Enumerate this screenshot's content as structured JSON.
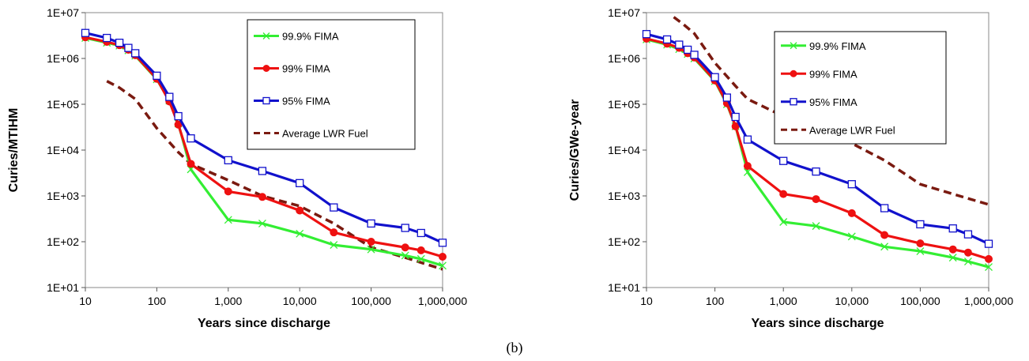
{
  "caption": "(b)",
  "chart_data": [
    {
      "type": "line",
      "xscale": "log",
      "yscale": "log",
      "xlabel": "Years since discharge",
      "ylabel": "Curies/MTIHM",
      "xlim": [
        10,
        1000000
      ],
      "ylim": [
        10,
        10000000
      ],
      "x_tick_labels": [
        "10",
        "100",
        "1,000",
        "10,000",
        "100,000",
        "1,000,000"
      ],
      "y_tick_labels": [
        "1E+01",
        "1E+02",
        "1E+03",
        "1E+04",
        "1E+05",
        "1E+06",
        "1E+07"
      ],
      "legend_position": "top-right",
      "series": [
        {
          "name": "99.9% FIMA",
          "color": "#33ee33",
          "marker": "x",
          "dash": "",
          "x": [
            10,
            20,
            30,
            40,
            50,
            100,
            150,
            200,
            300,
            1000,
            3000,
            10000,
            30000,
            100000,
            300000,
            500000,
            1000000
          ],
          "y": [
            2800000,
            2200000,
            1900000,
            1500000,
            1150000,
            350000,
            120000,
            38000,
            3800,
            300,
            250,
            150,
            85,
            68,
            50,
            42,
            30
          ]
        },
        {
          "name": "99% FIMA",
          "color": "#ee1111",
          "marker": "circle",
          "dash": "",
          "x": [
            10,
            20,
            30,
            40,
            50,
            100,
            150,
            200,
            300,
            1000,
            3000,
            10000,
            30000,
            100000,
            300000,
            500000,
            1000000
          ],
          "y": [
            2900000,
            2300000,
            1950000,
            1550000,
            1180000,
            360000,
            115000,
            36000,
            5000,
            1250,
            950,
            480,
            160,
            100,
            75,
            65,
            47
          ]
        },
        {
          "name": "95% FIMA",
          "color": "#1111cc",
          "marker": "square",
          "dash": "",
          "x": [
            10,
            20,
            30,
            40,
            50,
            100,
            150,
            200,
            300,
            1000,
            3000,
            10000,
            30000,
            100000,
            300000,
            500000,
            1000000
          ],
          "y": [
            3600000,
            2800000,
            2200000,
            1700000,
            1300000,
            420000,
            145000,
            55000,
            18000,
            6000,
            3500,
            1900,
            560,
            250,
            200,
            155,
            95
          ]
        },
        {
          "name": "Average LWR Fuel",
          "color": "#7a1a10",
          "marker": "none",
          "dash": "10,6",
          "x": [
            20,
            30,
            50,
            100,
            200,
            300,
            1000,
            3000,
            10000,
            30000,
            100000,
            300000,
            1000000
          ],
          "y": [
            320000,
            230000,
            130000,
            30000,
            9000,
            5000,
            2200,
            1000,
            600,
            250,
            75,
            45,
            25
          ]
        }
      ]
    },
    {
      "type": "line",
      "xscale": "log",
      "yscale": "log",
      "xlabel": "Years since discharge",
      "ylabel": "Curies/GWe-year",
      "xlim": [
        10,
        1000000
      ],
      "ylim": [
        10,
        10000000
      ],
      "x_tick_labels": [
        "10",
        "100",
        "1,000",
        "10,000",
        "100,000",
        "1,000,000"
      ],
      "y_tick_labels": [
        "1E+01",
        "1E+02",
        "1E+03",
        "1E+04",
        "1E+05",
        "1E+06",
        "1E+07"
      ],
      "legend_position": "top-right",
      "series": [
        {
          "name": "99.9% FIMA",
          "color": "#33ee33",
          "marker": "x",
          "dash": "",
          "x": [
            10,
            20,
            30,
            40,
            50,
            100,
            150,
            200,
            300,
            1000,
            3000,
            10000,
            30000,
            100000,
            300000,
            500000,
            1000000
          ],
          "y": [
            2600000,
            2000000,
            1600000,
            1250000,
            1000000,
            320000,
            100000,
            33000,
            3300,
            270,
            220,
            130,
            78,
            62,
            45,
            37,
            28
          ]
        },
        {
          "name": "99% FIMA",
          "color": "#ee1111",
          "marker": "circle",
          "dash": "",
          "x": [
            10,
            20,
            30,
            40,
            50,
            100,
            150,
            200,
            300,
            1000,
            3000,
            10000,
            30000,
            100000,
            300000,
            500000,
            1000000
          ],
          "y": [
            2700000,
            2100000,
            1700000,
            1300000,
            1050000,
            330000,
            105000,
            33000,
            4500,
            1100,
            850,
            420,
            140,
            92,
            68,
            58,
            42
          ]
        },
        {
          "name": "95% FIMA",
          "color": "#1111cc",
          "marker": "square",
          "dash": "",
          "x": [
            10,
            20,
            30,
            40,
            50,
            100,
            150,
            200,
            300,
            1000,
            3000,
            10000,
            30000,
            100000,
            300000,
            500000,
            1000000
          ],
          "y": [
            3400000,
            2600000,
            2000000,
            1550000,
            1200000,
            390000,
            140000,
            53000,
            17000,
            5800,
            3400,
            1800,
            540,
            240,
            195,
            145,
            90
          ]
        },
        {
          "name": "Average LWR Fuel",
          "color": "#7a1a10",
          "marker": "none",
          "dash": "10,6",
          "x": [
            25,
            35,
            50,
            100,
            200,
            300,
            1000,
            3000,
            10000,
            30000,
            100000,
            300000,
            1000000
          ],
          "y": [
            8000000,
            5500000,
            3500000,
            800000,
            250000,
            130000,
            55000,
            25000,
            14000,
            6000,
            1800,
            1100,
            650
          ]
        }
      ]
    }
  ]
}
